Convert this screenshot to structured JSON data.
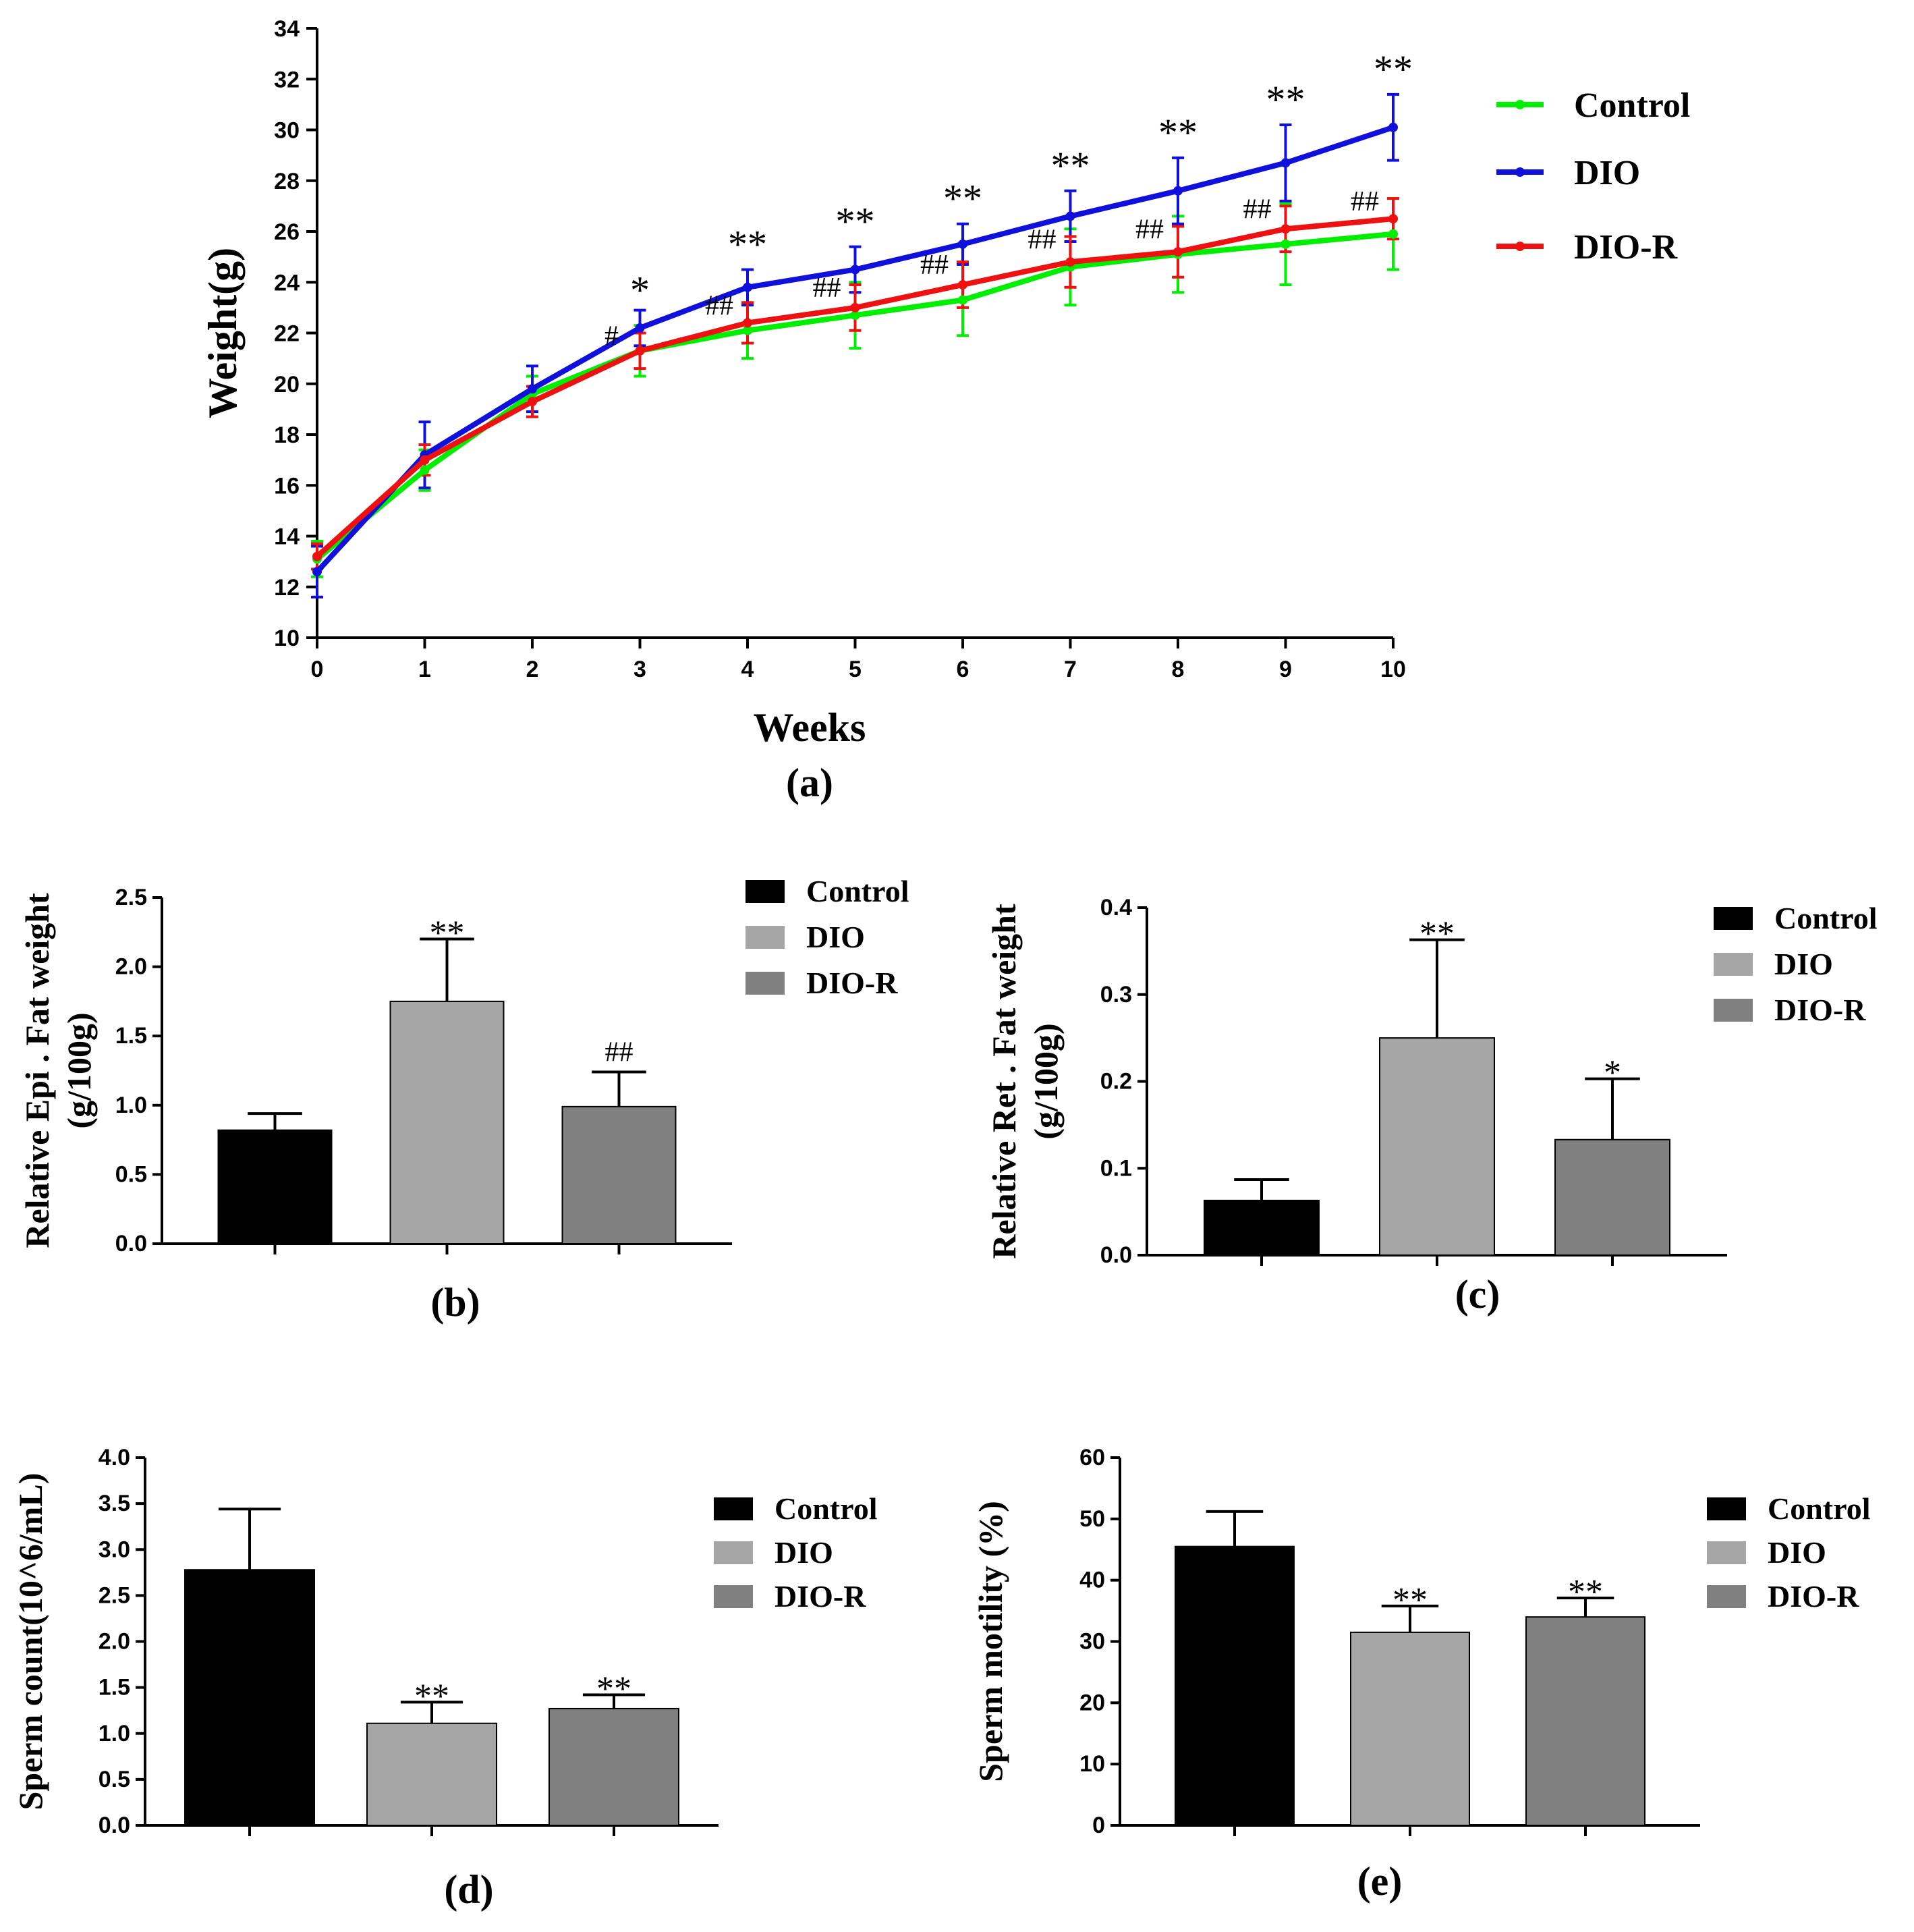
{
  "chart_data": [
    {
      "panel": "(a)",
      "type": "line",
      "xlabel": "Weeks",
      "ylabel": "Weight(g)",
      "xlim": [
        0,
        10
      ],
      "ylim": [
        10,
        34
      ],
      "x": [
        0,
        1,
        2,
        3,
        4,
        5,
        6,
        7,
        8,
        9,
        10
      ],
      "xticks": [
        0,
        1,
        2,
        3,
        4,
        5,
        6,
        7,
        8,
        9,
        10
      ],
      "yticks": [
        10,
        12,
        14,
        16,
        18,
        20,
        22,
        24,
        26,
        28,
        30,
        32,
        34
      ],
      "legend": "right",
      "series": [
        {
          "name": "Control",
          "color": "#00ee00",
          "values": [
            13.1,
            16.6,
            19.6,
            21.3,
            22.1,
            22.7,
            23.3,
            24.6,
            25.1,
            25.5,
            25.9
          ],
          "errors": [
            0.7,
            0.8,
            0.7,
            1.0,
            1.1,
            1.3,
            1.4,
            1.5,
            1.5,
            1.6,
            1.4
          ]
        },
        {
          "name": "DIO",
          "color": "#1010dd",
          "values": [
            12.6,
            17.2,
            19.8,
            22.2,
            23.8,
            24.5,
            25.5,
            26.6,
            27.6,
            28.7,
            30.1
          ],
          "errors": [
            1.0,
            1.3,
            0.9,
            0.7,
            0.7,
            0.9,
            0.8,
            1.0,
            1.3,
            1.5,
            1.3
          ]
        },
        {
          "name": "DIO-R",
          "color": "#ee1111",
          "values": [
            13.2,
            17.0,
            19.3,
            21.3,
            22.4,
            23.0,
            23.9,
            24.8,
            25.2,
            26.1,
            26.5
          ],
          "errors": [
            0.5,
            0.6,
            0.6,
            0.7,
            0.8,
            0.9,
            0.9,
            1.0,
            1.0,
            0.9,
            0.8
          ]
        }
      ],
      "annotations": [
        {
          "x": 3,
          "text": "*"
        },
        {
          "x": 4,
          "text": "**"
        },
        {
          "x": 5,
          "text": "**"
        },
        {
          "x": 6,
          "text": "**"
        },
        {
          "x": 7,
          "text": "**"
        },
        {
          "x": 8,
          "text": "**"
        },
        {
          "x": 9,
          "text": "**"
        },
        {
          "x": 10,
          "text": "**"
        },
        {
          "x": 3,
          "text": "#"
        },
        {
          "x": 4,
          "text": "##"
        },
        {
          "x": 5,
          "text": "##"
        },
        {
          "x": 6,
          "text": "##"
        },
        {
          "x": 7,
          "text": "##"
        },
        {
          "x": 8,
          "text": "##"
        },
        {
          "x": 9,
          "text": "##"
        },
        {
          "x": 10,
          "text": "##"
        }
      ]
    },
    {
      "panel": "(b)",
      "type": "bar",
      "ylabel": "Relative Epi . Fat weight",
      "ylabel2": "(g/100g)",
      "ylim": [
        0,
        2.5
      ],
      "yticks": [
        "0.0",
        "0.5",
        "1.0",
        "1.5",
        "2.0",
        "2.5"
      ],
      "legend": "top-right",
      "categories": [
        "Control",
        "DIO",
        "DIO-R"
      ],
      "colors": [
        "#000000",
        "#a6a6a6",
        "#808080"
      ],
      "values": [
        0.82,
        1.75,
        0.99
      ],
      "errors": [
        0.12,
        0.45,
        0.25
      ],
      "annotations": [
        "",
        "**",
        "##"
      ]
    },
    {
      "panel": "(c)",
      "type": "bar",
      "ylabel": "Relative Ret . Fat weight",
      "ylabel2": "(g/100g)",
      "ylim": [
        0,
        0.4
      ],
      "yticks": [
        "0.0",
        "0.1",
        "0.2",
        "0.3",
        "0.4"
      ],
      "legend": "top-right",
      "categories": [
        "Control",
        "DIO",
        "DIO-R"
      ],
      "colors": [
        "#000000",
        "#a6a6a6",
        "#808080"
      ],
      "values": [
        0.063,
        0.25,
        0.133
      ],
      "errors": [
        0.024,
        0.113,
        0.07
      ],
      "annotations": [
        "",
        "**",
        "*"
      ]
    },
    {
      "panel": "(d)",
      "type": "bar",
      "ylabel": "Sperm count(10^6/mL)",
      "ylim": [
        0,
        4.0
      ],
      "yticks": [
        "0.0",
        "0.5",
        "1.0",
        "1.5",
        "2.0",
        "2.5",
        "3.0",
        "3.5",
        "4.0"
      ],
      "legend": "top-right",
      "categories": [
        "Control",
        "DIO",
        "DIO-R"
      ],
      "colors": [
        "#000000",
        "#a6a6a6",
        "#808080"
      ],
      "values": [
        2.78,
        1.11,
        1.27
      ],
      "errors": [
        0.66,
        0.23,
        0.15
      ],
      "annotations": [
        "",
        "**",
        "**"
      ]
    },
    {
      "panel": "(e)",
      "type": "bar",
      "ylabel": "Sperm motility (%)",
      "ylim": [
        0,
        60
      ],
      "yticks": [
        "0",
        "10",
        "20",
        "30",
        "40",
        "50",
        "60"
      ],
      "legend": "top-right",
      "categories": [
        "Control",
        "DIO",
        "DIO-R"
      ],
      "colors": [
        "#000000",
        "#a6a6a6",
        "#808080"
      ],
      "values": [
        45.5,
        31.5,
        34
      ],
      "errors": [
        5.7,
        4.3,
        3.1
      ],
      "annotations": [
        "",
        "**",
        "**"
      ]
    }
  ]
}
